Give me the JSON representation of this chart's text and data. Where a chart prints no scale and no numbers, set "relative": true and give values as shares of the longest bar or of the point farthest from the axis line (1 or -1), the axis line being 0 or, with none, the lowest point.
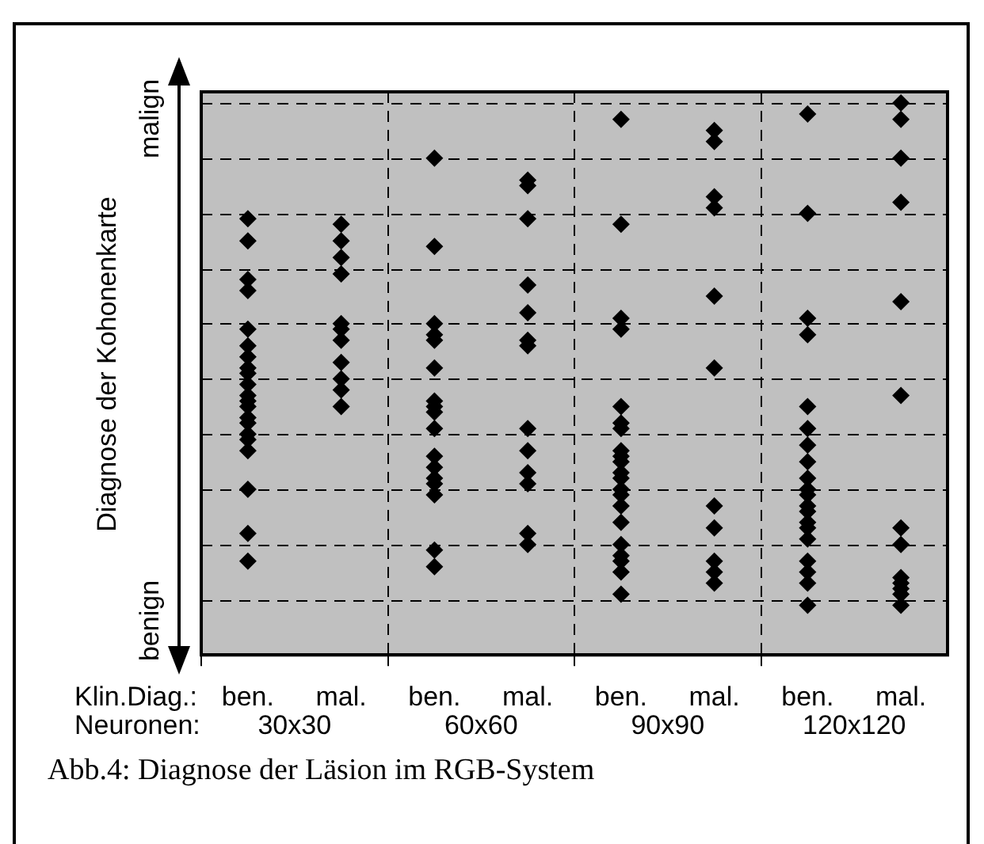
{
  "chart_data": {
    "type": "scatter",
    "relative": true,
    "xlabel": null,
    "ylabel": "Diagnose der Kohonenkarte",
    "categories": [
      "ben.",
      "mal.",
      "ben.",
      "mal.",
      "ben.",
      "mal.",
      "ben.",
      "mal."
    ],
    "annotations": [
      "Klin.Diag.:",
      "Neuronen:",
      "30x30",
      "60x60",
      "90x90",
      "120x120",
      "malign",
      "benign",
      "Abb.4: Diagnose der Läsion im RGB-System"
    ],
    "grid": true,
    "legend": false,
    "marker": "diamond",
    "series": [
      {
        "color": "#000000",
        "values": [
          0.79,
          0.78,
          0.9,
          0.86,
          0.97,
          0.95,
          0.98,
          1
        ]
      },
      {
        "color": "#000000",
        "values": [
          0.75,
          0.75,
          0.74,
          0.85,
          0.78,
          0.93,
          0.8,
          0.97
        ]
      },
      {
        "color": "#000000",
        "values": [
          0.68,
          0.72,
          0.6,
          0.79,
          0.61,
          0.83,
          0.61,
          0.9
        ]
      },
      {
        "color": "#000000",
        "values": [
          0.66,
          0.69,
          0.58,
          0.67,
          0.59,
          0.81,
          0.58,
          0.82
        ]
      },
      {
        "color": "#000000",
        "values": [
          0.59,
          0.6,
          0.57,
          0.62,
          0.45,
          0.65,
          0.45,
          0.64
        ]
      },
      {
        "color": "#000000",
        "values": [
          0.56,
          0.59,
          0.52,
          0.57,
          0.42,
          0.52,
          0.41,
          0.47
        ]
      },
      {
        "color": "#000000",
        "values": [
          0.54,
          0.57,
          0.46,
          0.56,
          0.41,
          0.27,
          0.38,
          0.23
        ]
      },
      {
        "color": "#000000",
        "values": [
          0.52,
          0.53,
          0.45,
          0.41,
          0.37,
          0.23,
          0.35,
          0.2
        ]
      },
      {
        "color": "#000000",
        "values": [
          0.51,
          null,
          0.44,
          0.37,
          0.36,
          0.17,
          0.32,
          0.14
        ]
      },
      {
        "color": "#000000",
        "values": [
          0.49,
          0.5,
          null,
          0.33,
          0.35,
          0.15,
          0.3,
          0.13
        ]
      },
      {
        "color": "#000000",
        "values": [
          0.47,
          0.48,
          0.41,
          0.31,
          0.33,
          0.13,
          0.29,
          0.12
        ]
      },
      {
        "color": "#000000",
        "values": [
          0.46,
          0.45,
          0.36,
          0.22,
          0.32,
          null,
          0.27,
          0.11
        ]
      },
      {
        "color": "#000000",
        "values": [
          0.45,
          null,
          0.34,
          0.2,
          0.3,
          null,
          0.26,
          0.09
        ]
      },
      {
        "color": "#000000",
        "values": [
          0.43,
          null,
          0.32,
          null,
          0.29,
          null,
          0.24,
          null
        ]
      },
      {
        "color": "#000000",
        "values": [
          0.42,
          null,
          0.31,
          null,
          0.27,
          null,
          0.23,
          null
        ]
      },
      {
        "color": "#000000",
        "values": [
          0.4,
          null,
          0.29,
          null,
          0.24,
          null,
          0.21,
          null
        ]
      },
      {
        "color": "#000000",
        "values": [
          0.39,
          null,
          0.19,
          null,
          0.2,
          null,
          0.17,
          null
        ]
      },
      {
        "color": "#000000",
        "values": [
          0.37,
          null,
          0.16,
          null,
          0.18,
          null,
          0.15,
          null
        ]
      },
      {
        "color": "#000000",
        "values": [
          0.3,
          null,
          null,
          null,
          0.17,
          null,
          0.13,
          null
        ]
      },
      {
        "color": "#000000",
        "values": [
          0.22,
          null,
          null,
          null,
          0.15,
          null,
          0.09,
          null
        ]
      },
      {
        "color": "#000000",
        "values": [
          0.17,
          null,
          null,
          null,
          0.11,
          null,
          null,
          null
        ]
      }
    ]
  }
}
